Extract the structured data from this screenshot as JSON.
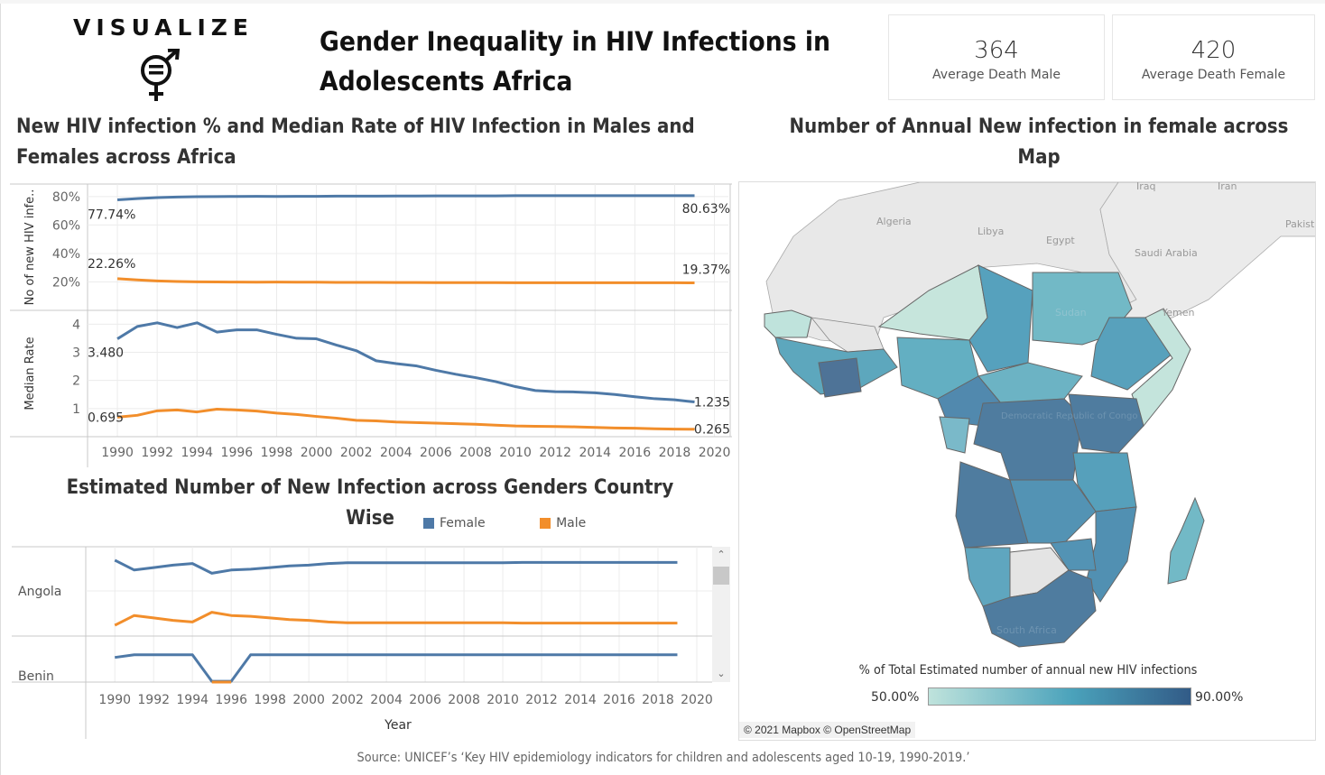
{
  "header": {
    "brand": "VISUALIZE",
    "logo_icon": "gender-equality-icon",
    "title": "Gender Inequality in HIV Infections in Adolescents Africa"
  },
  "kpis": [
    {
      "value": "364",
      "label": "Average Death Male"
    },
    {
      "value": "420",
      "label": "Average Death Female"
    }
  ],
  "colors": {
    "female": "#4e79a7",
    "male": "#f28e2b",
    "grid": "#ececec",
    "axis": "#c8c8c8",
    "map_low": "#bfe3dc",
    "map_high": "#325b87"
  },
  "source": "Source: UNICEF’s ‘Key HIV epidemiology indicators for children and adolescents aged 10-19, 1990-2019.’",
  "chart_data": [
    {
      "id": "pct-new-infections",
      "type": "line",
      "title": "New HIV infection % and Median Rate of HIV Infection in Males and Females across Africa",
      "ylabel": "No of new HIV infe..",
      "xlabel": "",
      "ylim": [
        0,
        85
      ],
      "yticks": [
        20,
        40,
        60,
        80
      ],
      "ytick_labels": [
        "20%",
        "40%",
        "60%",
        "80%"
      ],
      "x": [
        1990,
        1991,
        1992,
        1993,
        1994,
        1995,
        1996,
        1997,
        1998,
        1999,
        2000,
        2001,
        2002,
        2003,
        2004,
        2005,
        2006,
        2007,
        2008,
        2009,
        2010,
        2011,
        2012,
        2013,
        2014,
        2015,
        2016,
        2017,
        2018,
        2019
      ],
      "series": [
        {
          "name": "Female",
          "values": [
            77.74,
            78.6,
            79.3,
            79.7,
            79.9,
            80.0,
            80.1,
            80.2,
            80.1,
            80.2,
            80.2,
            80.3,
            80.3,
            80.3,
            80.4,
            80.4,
            80.5,
            80.5,
            80.5,
            80.5,
            80.6,
            80.6,
            80.6,
            80.6,
            80.6,
            80.6,
            80.6,
            80.6,
            80.6,
            80.63
          ],
          "start_label": "77.74%",
          "end_label": "80.63%"
        },
        {
          "name": "Male",
          "values": [
            22.26,
            21.4,
            20.7,
            20.3,
            20.1,
            20.0,
            19.9,
            19.8,
            19.9,
            19.8,
            19.8,
            19.7,
            19.7,
            19.7,
            19.6,
            19.6,
            19.5,
            19.5,
            19.5,
            19.5,
            19.4,
            19.4,
            19.4,
            19.4,
            19.4,
            19.4,
            19.4,
            19.4,
            19.4,
            19.37
          ],
          "start_label": "22.26%",
          "end_label": "19.37%"
        }
      ],
      "grid": true
    },
    {
      "id": "median-rate",
      "type": "line",
      "title": "",
      "ylabel": "Median Rate",
      "xlabel": "",
      "ylim": [
        0,
        4.3
      ],
      "yticks": [
        1,
        2,
        3,
        4
      ],
      "ytick_labels": [
        "1",
        "2",
        "3",
        "4"
      ],
      "x": [
        1990,
        1991,
        1992,
        1993,
        1994,
        1995,
        1996,
        1997,
        1998,
        1999,
        2000,
        2001,
        2002,
        2003,
        2004,
        2005,
        2006,
        2007,
        2008,
        2009,
        2010,
        2011,
        2012,
        2013,
        2014,
        2015,
        2016,
        2017,
        2018,
        2019
      ],
      "xticks": [
        1990,
        1992,
        1994,
        1996,
        1998,
        2000,
        2002,
        2004,
        2006,
        2008,
        2010,
        2012,
        2014,
        2016,
        2018,
        2020
      ],
      "series": [
        {
          "name": "Female",
          "values": [
            3.48,
            3.92,
            4.05,
            3.88,
            4.05,
            3.72,
            3.8,
            3.8,
            3.64,
            3.5,
            3.48,
            3.26,
            3.06,
            2.7,
            2.6,
            2.52,
            2.36,
            2.22,
            2.1,
            1.96,
            1.78,
            1.64,
            1.6,
            1.59,
            1.56,
            1.5,
            1.42,
            1.35,
            1.31,
            1.235
          ],
          "start_label": "3.480",
          "end_label": "1.235"
        },
        {
          "name": "Male",
          "values": [
            0.695,
            0.76,
            0.92,
            0.95,
            0.88,
            0.98,
            0.95,
            0.91,
            0.84,
            0.79,
            0.72,
            0.66,
            0.58,
            0.56,
            0.52,
            0.5,
            0.48,
            0.46,
            0.44,
            0.41,
            0.38,
            0.37,
            0.36,
            0.35,
            0.33,
            0.31,
            0.3,
            0.28,
            0.27,
            0.265
          ],
          "start_label": "0.695",
          "end_label": "0.265"
        }
      ],
      "grid": true
    },
    {
      "id": "country-infections",
      "type": "line",
      "title": "Estimated Number of New Infection across Genders Country Wise",
      "xlabel": "Year",
      "legend": [
        {
          "name": "Female"
        },
        {
          "name": "Male"
        }
      ],
      "legend_position": "top-right",
      "x": [
        1990,
        1991,
        1992,
        1993,
        1994,
        1995,
        1996,
        1997,
        1998,
        1999,
        2000,
        2001,
        2002,
        2003,
        2004,
        2005,
        2006,
        2007,
        2008,
        2009,
        2010,
        2011,
        2012,
        2013,
        2014,
        2015,
        2016,
        2017,
        2018,
        2019
      ],
      "xticks": [
        1990,
        1992,
        1994,
        1996,
        1998,
        2000,
        2002,
        2004,
        2006,
        2008,
        2010,
        2012,
        2014,
        2016,
        2018,
        2020
      ],
      "rows": [
        {
          "country": "Angola",
          "ylim": [
            0,
            100
          ],
          "series": [
            {
              "name": "Female",
              "values": [
                90,
                78,
                81,
                84,
                86,
                74,
                78,
                79,
                81,
                83,
                84,
                86,
                87,
                87,
                87,
                87,
                87,
                87,
                87,
                87,
                87,
                87.3,
                87.3,
                87.3,
                87.3,
                87.3,
                87.3,
                87.3,
                87.3,
                87.3
              ]
            },
            {
              "name": "Male",
              "values": [
                10,
                22,
                19,
                16,
                14,
                26,
                22,
                21,
                19,
                17,
                16,
                14,
                13,
                13,
                13,
                13,
                13,
                13,
                13,
                13,
                13,
                12.7,
                12.7,
                12.7,
                12.7,
                12.7,
                12.7,
                12.7,
                12.7,
                12.7
              ]
            }
          ]
        },
        {
          "country": "Benin",
          "ylim": [
            0,
            100
          ],
          "series": [
            {
              "name": "Female",
              "values": [
                65,
                72,
                72,
                72,
                72,
                2,
                2,
                72,
                72,
                72,
                72,
                72,
                72,
                72,
                72,
                72,
                72,
                72,
                72,
                72,
                72,
                72,
                72,
                72,
                72,
                72,
                72,
                72,
                72,
                72
              ]
            },
            {
              "name": "Male",
              "values": [
                null,
                null,
                null,
                null,
                null,
                0,
                0,
                null,
                null,
                null,
                null,
                null,
                null,
                null,
                null,
                null,
                null,
                null,
                null,
                null,
                null,
                null,
                null,
                null,
                null,
                null,
                null,
                null,
                null,
                null
              ]
            }
          ]
        }
      ]
    },
    {
      "id": "female-infection-map",
      "type": "heatmap",
      "title": "Number of Annual New infection in female across Map",
      "legend_title": "% of Total Estimated number of annual new HIV infections",
      "legend_min_label": "50.00%",
      "legend_max_label": "90.00%",
      "range": [
        50,
        90
      ],
      "place_labels": [
        "Algeria",
        "Libya",
        "Egypt",
        "Iraq",
        "Iran",
        "Saudi Arabia",
        "Pakist",
        "Yemen",
        "Sudan",
        "Democratic Republic of Congo",
        "South Africa"
      ],
      "attribution": "© 2021 Mapbox © OpenStreetMap"
    }
  ]
}
